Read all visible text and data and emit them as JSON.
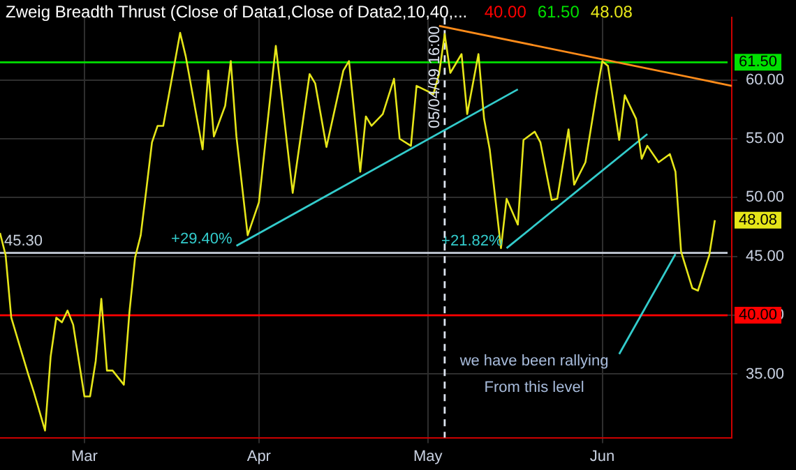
{
  "chart_data": {
    "type": "line",
    "title": "Zweig Breadth Thrust (Close of Data1,Close of Data2,10,40,...",
    "x": [
      "--02-14",
      "--02-15",
      "--02-16",
      "--02-19",
      "--02-20",
      "--02-22",
      "--02-23",
      "--02-24",
      "--02-25",
      "--02-26",
      "--02-27",
      "--03-01",
      "--03-02",
      "--03-03",
      "--03-04",
      "--03-05",
      "--03-06",
      "--03-08",
      "--03-09",
      "--03-10",
      "--03-11",
      "--03-12",
      "--03-13",
      "--03-14",
      "--03-15",
      "--03-18",
      "--03-19",
      "--03-21",
      "--03-22",
      "--03-23",
      "--03-24",
      "--03-26",
      "--03-27",
      "--03-28",
      "--03-30",
      "--04-01",
      "--04-04",
      "--04-07",
      "--04-10",
      "--04-11",
      "--04-13",
      "--04-16",
      "--04-17",
      "--04-19",
      "--04-20",
      "--04-21",
      "--04-23",
      "--04-25",
      "--04-26",
      "--04-28",
      "--04-29",
      "--05-02",
      "--05-03",
      "--05-04",
      "--05-05",
      "--05-07",
      "--05-08",
      "--05-10",
      "--05-11",
      "--05-12",
      "--05-14",
      "--05-15",
      "--05-17",
      "--05-18",
      "--05-20",
      "--05-21",
      "--05-23",
      "--05-24",
      "--05-26",
      "--05-27",
      "--05-29",
      "--05-31",
      "--06-01",
      "--06-02",
      "--06-04",
      "--06-05",
      "--06-07",
      "--06-08",
      "--06-09",
      "--06-11",
      "--06-13",
      "--06-14",
      "--06-15",
      "--06-17",
      "--06-18",
      "--06-20",
      "--06-21"
    ],
    "series": [
      {
        "color": "#e6e619",
        "values": [
          47.0,
          45.1,
          39.8,
          35.0,
          33.5,
          30.2,
          36.5,
          39.8,
          39.4,
          40.4,
          39.2,
          33.1,
          33.1,
          36.1,
          41.4,
          35.3,
          35.3,
          34.1,
          40.3,
          44.9,
          46.8,
          50.7,
          54.7,
          56.1,
          56.1,
          64.0,
          62.0,
          56.7,
          54.1,
          60.8,
          55.2,
          57.8,
          61.6,
          55.2,
          46.8,
          49.6,
          62.9,
          50.4,
          60.5,
          59.7,
          54.3,
          60.8,
          61.6,
          52.2,
          56.9,
          56.1,
          57.1,
          60.1,
          55.0,
          54.4,
          59.5,
          58.8,
          60.5,
          63.9,
          60.6,
          62.2,
          57.1,
          62.2,
          56.7,
          54.1,
          45.7,
          49.9,
          47.7,
          54.9,
          55.6,
          54.7,
          49.8,
          49.9,
          55.8,
          51.1,
          53.0,
          58.9,
          61.6,
          61.2,
          54.9,
          58.7,
          56.7,
          53.3,
          54.4,
          53.0,
          53.7,
          52.2,
          45.4,
          42.3,
          42.1,
          45.1,
          48.08
        ],
        "value_labels": [
          null,
          null,
          null,
          null,
          null,
          null,
          null,
          null,
          null,
          null,
          null,
          null,
          null,
          null,
          null,
          null,
          null,
          null,
          null,
          null,
          null,
          null,
          null,
          null,
          null,
          null,
          null,
          null,
          null,
          null,
          null,
          null,
          null,
          null,
          null,
          null,
          null,
          null,
          null,
          null,
          null,
          null,
          null,
          null,
          null,
          null,
          null,
          null,
          null,
          null,
          null,
          null,
          null,
          null,
          null,
          null,
          null,
          null,
          null,
          null,
          null,
          null,
          null,
          null,
          null,
          null,
          null,
          null,
          null,
          null,
          null,
          null,
          null,
          null,
          null,
          null,
          null,
          null,
          null,
          null,
          null,
          null,
          null,
          null,
          null,
          null,
          "48.08"
        ]
      },
      {
        "color": "#ff8c1a",
        "x": [
          "--05-03",
          "--06-24"
        ],
        "values": [
          64.6,
          59.5
        ]
      },
      {
        "color": "#33cccc",
        "x": [
          "--03-28",
          "--05-17"
        ],
        "values": [
          45.9,
          59.2
        ]
      },
      {
        "color": "#33cccc",
        "x": [
          "--05-15",
          "--06-09"
        ],
        "values": [
          45.7,
          55.4
        ]
      },
      {
        "color": "#33cccc",
        "x": [
          "--06-04",
          "--06-14"
        ],
        "values": [
          36.7,
          45.2
        ]
      }
    ],
    "xlim": [
      "--02-14",
      "--06-24"
    ],
    "xticks": [
      {
        "value": "--03-01",
        "label": "Mar"
      },
      {
        "value": "--04-01",
        "label": "Apr"
      },
      {
        "value": "--05-01",
        "label": "May"
      },
      {
        "value": "--06-01",
        "label": "Jun"
      }
    ],
    "ylim": [
      29.6,
      65.3
    ],
    "yticks": [
      {
        "value": 35,
        "label": "35.00"
      },
      {
        "value": 40,
        "label": "40.00"
      },
      {
        "value": 45,
        "label": "45.00"
      },
      {
        "value": 50,
        "label": "50.00"
      },
      {
        "value": 55,
        "label": "55.00"
      },
      {
        "value": 60,
        "label": "60.00"
      }
    ],
    "ref_lines": [
      {
        "axis": "y",
        "value": 40,
        "label": "40.00",
        "color": "#ff0000"
      },
      {
        "axis": "y",
        "value": 61.5,
        "label": "61.50",
        "color": "#00e000"
      },
      {
        "axis": "y",
        "value": 45.3,
        "label": "45.30",
        "color": "#c8d0dc",
        "line_style": "solid"
      },
      {
        "axis": "x",
        "value": "--05-04",
        "label": "05/04/09 16:00",
        "color": "#dde4f0",
        "line_style": "dashed"
      }
    ],
    "annotations": [
      {
        "text": "+29.40%",
        "x": "--03-28",
        "y": 45.9
      },
      {
        "text": "+21.82%",
        "x": "--05-15",
        "y": 45.7
      },
      "we have been rallying",
      "From this level"
    ],
    "grid": true,
    "legend": false,
    "marker": "none",
    "line_style": "solid"
  }
}
